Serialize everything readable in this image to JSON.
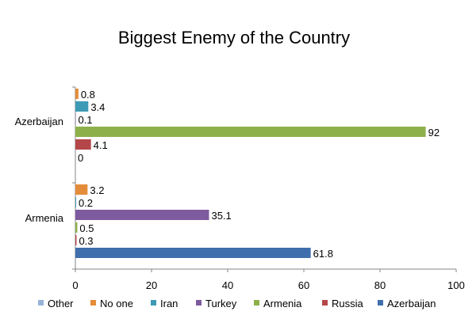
{
  "chart_data": {
    "type": "bar",
    "orientation": "horizontal",
    "title": "Biggest Enemy of the Country",
    "xlabel": "",
    "ylabel": "",
    "xlim": [
      0,
      100
    ],
    "xticks": [
      0,
      20,
      40,
      60,
      80,
      100
    ],
    "categories": [
      "Azerbaijan",
      "Armenia"
    ],
    "series": [
      {
        "name": "Other",
        "color": "#95B3D7",
        "values": [
          null,
          null
        ]
      },
      {
        "name": "No one",
        "color": "#E48C3A",
        "values": [
          0.8,
          3.2
        ]
      },
      {
        "name": "Iran",
        "color": "#3E9BB5",
        "values": [
          3.4,
          0.2
        ]
      },
      {
        "name": "Turkey",
        "color": "#7E5A9E",
        "values": [
          0.1,
          35.1
        ]
      },
      {
        "name": "Armenia",
        "color": "#8DB04A",
        "values": [
          92,
          0.5
        ]
      },
      {
        "name": "Russia",
        "color": "#B4474A",
        "values": [
          4.1,
          0.3
        ]
      },
      {
        "name": "Azerbaijan",
        "color": "#3F6FAD",
        "values": [
          0,
          61.8
        ]
      }
    ],
    "data_labels": [
      [
        "",
        "0.8",
        "3.4",
        "0.1",
        "92",
        "4.1",
        "0"
      ],
      [
        "",
        "3.2",
        "0.2",
        "35.1",
        "0.5",
        "0.3",
        "61.8"
      ]
    ],
    "legend_position": "bottom",
    "grid": false
  }
}
